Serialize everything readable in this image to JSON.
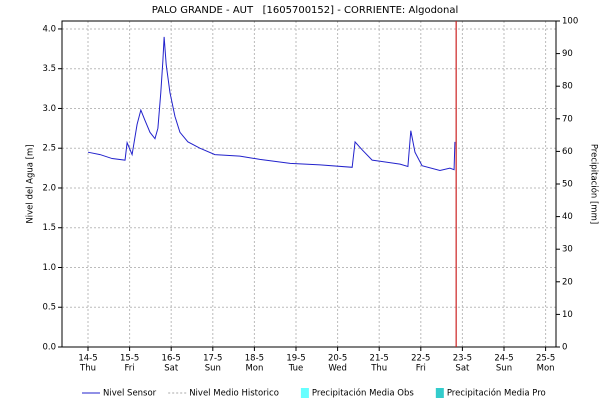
{
  "chart_data": {
    "type": "line",
    "title": "PALO GRANDE - AUT   [1605700152] - CORRIENTE: Algodonal",
    "ylabel": "Nivel del Agua [m]",
    "y2label": "Precipitación [mm]",
    "xlim": [
      13.375,
      25.25
    ],
    "xticks": [
      {
        "value": 14,
        "label": "14-5"
      },
      {
        "value": 15,
        "label": "15-5"
      },
      {
        "value": 16,
        "label": "16-5"
      },
      {
        "value": 17,
        "label": "17-5"
      },
      {
        "value": 18,
        "label": "18-5"
      },
      {
        "value": 19,
        "label": "19-5"
      },
      {
        "value": 20,
        "label": "20-5"
      },
      {
        "value": 21,
        "label": "21-5"
      },
      {
        "value": 22,
        "label": "22-5"
      },
      {
        "value": 23,
        "label": "23-5"
      },
      {
        "value": 24,
        "label": "24-5"
      },
      {
        "value": 25,
        "label": "25-5"
      }
    ],
    "xtick_days": [
      "Thu",
      "Fri",
      "Sat",
      "Sun",
      "Mon",
      "Tue",
      "Wed",
      "Thu",
      "Fri",
      "Sat",
      "Sun",
      "Mon"
    ],
    "ylim": [
      0,
      4.1
    ],
    "yticks": [
      {
        "value": 0,
        "label": "0.0"
      },
      {
        "value": 0.5,
        "label": "0.5"
      },
      {
        "value": 1,
        "label": "1.0"
      },
      {
        "value": 1.5,
        "label": "1.5"
      },
      {
        "value": 2,
        "label": "2.0"
      },
      {
        "value": 2.5,
        "label": "2.5"
      },
      {
        "value": 3,
        "label": "3.0"
      },
      {
        "value": 3.5,
        "label": "3.5"
      },
      {
        "value": 4,
        "label": "4.0"
      }
    ],
    "y2lim": [
      0,
      100
    ],
    "y2ticks": [
      0,
      10,
      20,
      30,
      40,
      50,
      60,
      70,
      80,
      90,
      100
    ],
    "grid": true,
    "vline": {
      "x": 22.85,
      "color": "#cc2222"
    },
    "series": [
      {
        "name": "Nivel Sensor",
        "color": "#2222cc",
        "style": "line",
        "x": [
          14.0,
          14.29,
          14.58,
          14.89,
          14.94,
          15.06,
          15.18,
          15.27,
          15.37,
          15.49,
          15.61,
          15.68,
          15.75,
          15.8,
          15.83,
          15.88,
          15.97,
          16.09,
          16.21,
          16.4,
          16.69,
          17.05,
          17.65,
          18.13,
          18.86,
          19.58,
          20.35,
          20.42,
          20.59,
          20.83,
          21.5,
          21.69,
          21.76,
          21.86,
          22.03,
          22.46,
          22.7,
          22.8,
          22.82
        ],
        "values": [
          2.45,
          2.42,
          2.37,
          2.35,
          2.57,
          2.42,
          2.8,
          2.98,
          2.85,
          2.7,
          2.62,
          2.75,
          3.2,
          3.6,
          3.9,
          3.55,
          3.2,
          2.9,
          2.7,
          2.58,
          2.5,
          2.42,
          2.4,
          2.36,
          2.31,
          2.29,
          2.26,
          2.58,
          2.48,
          2.35,
          2.3,
          2.27,
          2.72,
          2.45,
          2.28,
          2.22,
          2.25,
          2.23,
          2.58
        ]
      },
      {
        "name": "Nivel Medio Historico",
        "color": "#aaaaaa",
        "style": "dashed"
      },
      {
        "name": "Precipitación Media Obs",
        "color": "#66ffff",
        "style": "box"
      },
      {
        "name": "Precipitación Media Pro",
        "color": "#33cccc",
        "style": "box"
      }
    ]
  }
}
